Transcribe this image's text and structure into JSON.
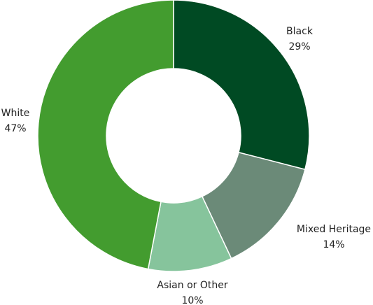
{
  "chart_data": {
    "type": "donut",
    "categories": [
      "Black",
      "Mixed Heritage",
      "Asian or Other",
      "White"
    ],
    "values": [
      29,
      14,
      10,
      47
    ],
    "value_labels": [
      "29%",
      "14%",
      "10%",
      "47%"
    ],
    "colors": [
      "#004a23",
      "#6b8a78",
      "#86c49c",
      "#439c2f"
    ]
  }
}
